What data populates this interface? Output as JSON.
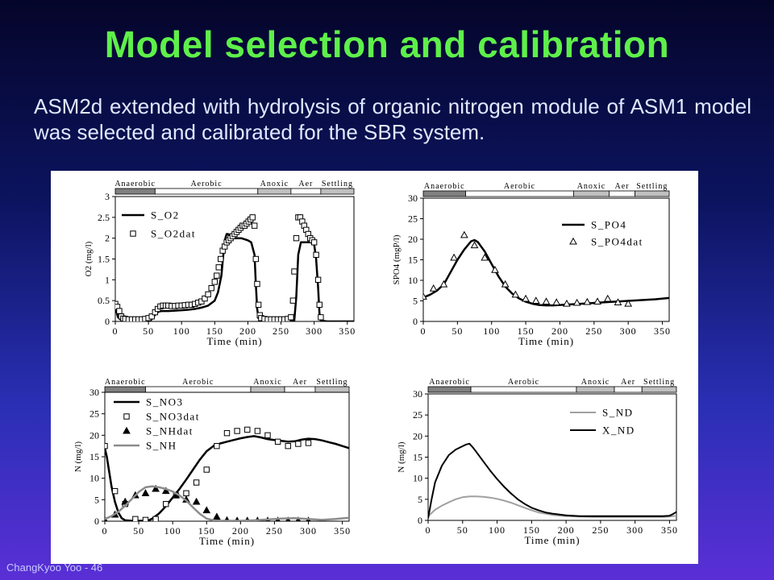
{
  "slide": {
    "title": "Model selection and calibration",
    "body": "ASM2d extended with hydrolysis of organic nitrogen module of ASM1 model was selected and calibrated for the SBR system.",
    "footer": "ChangKyoo Yoo - 46"
  },
  "chart_data": [
    {
      "type": "line",
      "id": "o2",
      "xlabel": "Time (min)",
      "ylabel": "O2 (mg/l)",
      "xlim": [
        0,
        360
      ],
      "ylim": [
        0,
        3
      ],
      "xticks": [
        0,
        50,
        100,
        150,
        200,
        250,
        300,
        350
      ],
      "yticks": [
        0,
        0.5,
        1,
        1.5,
        2,
        2.5,
        3
      ],
      "ytick_labels": [
        "0",
        "0.5",
        "1",
        "1.5",
        "2",
        "2.5",
        "3"
      ],
      "legend_position": "top-left",
      "phases": [
        {
          "label": "Anaerobic",
          "start": 0,
          "end": 60,
          "color": "#808080"
        },
        {
          "label": "Aerobic",
          "start": 60,
          "end": 215,
          "color": "#ffffff"
        },
        {
          "label": "Anoxic",
          "start": 215,
          "end": 265,
          "color": "#c0c0c0"
        },
        {
          "label": "Aer",
          "start": 265,
          "end": 310,
          "color": "#ffffff"
        },
        {
          "label": "Settling",
          "start": 310,
          "end": 360,
          "color": "#c0c0c0"
        }
      ],
      "series": [
        {
          "name": "S_O2",
          "kind": "line",
          "color": "#000000",
          "width": 2.5,
          "x": [
            0,
            4,
            10,
            20,
            30,
            40,
            50,
            55,
            58,
            62,
            66,
            70,
            80,
            90,
            100,
            110,
            120,
            130,
            140,
            150,
            155,
            160,
            163,
            166,
            168,
            170,
            175,
            180,
            190,
            200,
            205,
            210,
            212,
            214,
            216,
            220,
            240,
            260,
            265,
            270,
            273,
            276,
            280,
            290,
            295,
            300,
            303,
            306,
            308,
            310,
            320,
            340,
            360
          ],
          "y": [
            0.35,
            0.1,
            0.02,
            0.01,
            0.01,
            0.01,
            0.02,
            0.05,
            0.12,
            0.2,
            0.24,
            0.25,
            0.25,
            0.26,
            0.27,
            0.28,
            0.3,
            0.33,
            0.38,
            0.5,
            0.7,
            1.1,
            1.6,
            2.0,
            2.1,
            2.1,
            2.05,
            2.0,
            2.0,
            1.95,
            1.9,
            1.6,
            0.9,
            0.3,
            0.08,
            0.02,
            0.01,
            0.01,
            0.01,
            0.02,
            0.6,
            1.6,
            1.9,
            1.9,
            1.9,
            1.85,
            1.5,
            0.8,
            0.2,
            0.02,
            0.0,
            0.0,
            0.0
          ]
        },
        {
          "name": "S_O2dat",
          "kind": "marker",
          "marker": "square",
          "x": [
            0,
            3,
            6,
            9,
            12,
            15,
            20,
            25,
            30,
            35,
            40,
            45,
            50,
            55,
            60,
            64,
            68,
            72,
            76,
            80,
            85,
            90,
            95,
            100,
            105,
            110,
            115,
            120,
            125,
            130,
            135,
            140,
            145,
            150,
            153,
            156,
            159,
            162,
            165,
            168,
            171,
            174,
            177,
            180,
            183,
            186,
            189,
            192,
            195,
            198,
            201,
            204,
            207,
            210,
            212,
            214,
            216,
            218,
            220,
            225,
            230,
            235,
            240,
            245,
            250,
            255,
            260,
            265,
            268,
            270,
            273,
            276,
            279,
            282,
            285,
            288,
            291,
            294,
            297,
            300,
            303,
            306,
            308,
            310
          ],
          "y": [
            0.42,
            0.35,
            0.25,
            0.12,
            0.07,
            0.06,
            0.05,
            0.05,
            0.05,
            0.05,
            0.05,
            0.06,
            0.08,
            0.12,
            0.22,
            0.3,
            0.36,
            0.38,
            0.38,
            0.38,
            0.37,
            0.37,
            0.38,
            0.38,
            0.39,
            0.4,
            0.4,
            0.42,
            0.45,
            0.48,
            0.55,
            0.65,
            0.8,
            0.95,
            1.1,
            1.3,
            1.5,
            1.7,
            1.8,
            1.9,
            1.95,
            2.0,
            2.05,
            2.1,
            2.15,
            2.2,
            2.25,
            2.3,
            2.3,
            2.35,
            2.4,
            2.45,
            2.5,
            2.3,
            1.5,
            0.9,
            0.4,
            0.15,
            0.08,
            0.06,
            0.05,
            0.05,
            0.05,
            0.05,
            0.05,
            0.05,
            0.06,
            0.1,
            0.5,
            1.2,
            2.0,
            2.5,
            2.5,
            2.4,
            2.3,
            2.2,
            2.1,
            2.0,
            1.95,
            1.9,
            1.6,
            1.0,
            0.4,
            0.1
          ]
        }
      ]
    },
    {
      "type": "line",
      "id": "po4",
      "xlabel": "Time (min)",
      "ylabel": "SPO4 (mgP/l)",
      "xlim": [
        0,
        360
      ],
      "ylim": [
        0,
        30
      ],
      "xticks": [
        0,
        50,
        100,
        150,
        200,
        250,
        300,
        350
      ],
      "yticks": [
        0,
        5,
        10,
        15,
        20,
        25,
        30
      ],
      "ytick_labels": [
        "0",
        "5",
        "10",
        "15",
        "20",
        "25",
        "30"
      ],
      "legend_position": "top-right",
      "phases": [
        {
          "label": "Anaerobic",
          "start": 0,
          "end": 62,
          "color": "#808080"
        },
        {
          "label": "Aerobic",
          "start": 62,
          "end": 220,
          "color": "#ffffff"
        },
        {
          "label": "Anoxic",
          "start": 220,
          "end": 272,
          "color": "#c0c0c0"
        },
        {
          "label": "Aer",
          "start": 272,
          "end": 310,
          "color": "#ffffff"
        },
        {
          "label": "Settling",
          "start": 310,
          "end": 360,
          "color": "#c0c0c0"
        }
      ],
      "series": [
        {
          "name": "S_PO4",
          "kind": "line",
          "color": "#000000",
          "width": 2.5,
          "x": [
            0,
            10,
            20,
            30,
            40,
            50,
            60,
            70,
            75,
            80,
            90,
            100,
            110,
            120,
            130,
            140,
            150,
            160,
            170,
            180,
            190,
            200,
            220,
            240,
            260,
            280,
            300,
            320,
            340,
            360
          ],
          "y": [
            5.8,
            6.5,
            7.5,
            9.0,
            12.0,
            15.0,
            17.5,
            19.5,
            19.8,
            19.3,
            17.0,
            14.0,
            11.0,
            8.5,
            6.8,
            5.6,
            4.8,
            4.3,
            4.0,
            3.9,
            3.9,
            4.0,
            4.2,
            4.4,
            4.6,
            4.8,
            5.0,
            5.2,
            5.4,
            5.7
          ]
        },
        {
          "name": "S_PO4dat",
          "kind": "marker",
          "marker": "triangle-open",
          "x": [
            0,
            15,
            30,
            45,
            60,
            75,
            90,
            105,
            120,
            135,
            150,
            165,
            180,
            195,
            210,
            225,
            240,
            255,
            270,
            285,
            300
          ],
          "y": [
            6.0,
            8.0,
            9.0,
            15.5,
            21.0,
            18.5,
            15.5,
            12.5,
            9.0,
            6.5,
            5.5,
            5.0,
            4.8,
            4.6,
            4.3,
            4.5,
            4.7,
            4.8,
            5.5,
            4.6,
            4.3
          ]
        }
      ]
    },
    {
      "type": "line",
      "id": "no3",
      "xlabel": "Time (min)",
      "ylabel": "N (mg/l)",
      "xlim": [
        0,
        360
      ],
      "ylim": [
        0,
        30
      ],
      "xticks": [
        0,
        50,
        100,
        150,
        200,
        250,
        300,
        350
      ],
      "yticks": [
        0,
        5,
        10,
        15,
        20,
        25,
        30
      ],
      "ytick_labels": [
        "0",
        "5",
        "10",
        "15",
        "20",
        "25",
        "30"
      ],
      "legend_position": "top-left",
      "phases": [
        {
          "label": "Anaerobic",
          "start": 0,
          "end": 60,
          "color": "#808080"
        },
        {
          "label": "Aerobic",
          "start": 60,
          "end": 215,
          "color": "#ffffff"
        },
        {
          "label": "Anoxic",
          "start": 215,
          "end": 265,
          "color": "#c0c0c0"
        },
        {
          "label": "Aer",
          "start": 265,
          "end": 310,
          "color": "#ffffff"
        },
        {
          "label": "Settling",
          "start": 310,
          "end": 360,
          "color": "#c0c0c0"
        }
      ],
      "series": [
        {
          "name": "S_NO3",
          "kind": "line",
          "color": "#000000",
          "width": 2.5,
          "x": [
            0,
            3,
            6,
            10,
            15,
            20,
            25,
            30,
            40,
            50,
            60,
            65,
            70,
            80,
            90,
            100,
            110,
            120,
            130,
            140,
            150,
            160,
            170,
            180,
            190,
            200,
            210,
            220,
            230,
            240,
            250,
            260,
            270,
            280,
            290,
            300,
            310,
            320,
            330,
            340,
            350,
            360
          ],
          "y": [
            17.0,
            15.0,
            12.0,
            8.0,
            4.5,
            2.0,
            0.7,
            0.2,
            0.1,
            0.1,
            0.1,
            0.2,
            0.6,
            1.8,
            3.5,
            5.5,
            7.5,
            9.7,
            12.0,
            14.3,
            16.3,
            17.5,
            18.1,
            18.5,
            18.9,
            19.3,
            19.6,
            19.8,
            19.5,
            19.1,
            18.9,
            18.7,
            18.5,
            18.6,
            19.0,
            19.2,
            19.1,
            18.8,
            18.4,
            18.0,
            17.5,
            17.0
          ]
        },
        {
          "name": "S_NO3dat",
          "kind": "marker",
          "marker": "square",
          "x": [
            0,
            15,
            30,
            45,
            60,
            75,
            90,
            105,
            120,
            135,
            150,
            165,
            180,
            195,
            210,
            225,
            240,
            255,
            270,
            285,
            300
          ],
          "y": [
            17.5,
            7.0,
            4.0,
            0.5,
            0.3,
            0.5,
            4.0,
            6.0,
            6.5,
            9.0,
            12.0,
            17.5,
            20.5,
            21.0,
            21.3,
            21.0,
            20.0,
            18.5,
            17.5,
            18.0,
            18.2
          ]
        },
        {
          "name": "S_NHdat",
          "kind": "marker",
          "marker": "triangle-filled",
          "x": [
            0,
            15,
            30,
            45,
            60,
            75,
            90,
            105,
            120,
            135,
            150,
            165,
            180,
            195,
            210,
            225,
            240,
            255,
            270,
            285,
            300
          ],
          "y": [
            0.2,
            1.5,
            4.5,
            6.0,
            6.5,
            7.5,
            7.0,
            6.0,
            5.0,
            4.5,
            2.5,
            1.0,
            0.2,
            0.1,
            0.1,
            0.1,
            0.1,
            0.1,
            0.1,
            0.1,
            0.1
          ]
        },
        {
          "name": "S_NH",
          "kind": "line",
          "color": "#8c8c8c",
          "width": 2.5,
          "x": [
            0,
            10,
            20,
            30,
            40,
            50,
            60,
            70,
            80,
            90,
            100,
            110,
            120,
            130,
            140,
            150,
            160,
            170,
            180,
            190,
            200,
            220,
            240,
            260,
            280,
            300,
            320,
            340,
            360
          ],
          "y": [
            0.5,
            1.2,
            2.2,
            3.6,
            5.2,
            6.8,
            7.9,
            8.1,
            7.9,
            7.5,
            6.9,
            6.0,
            4.8,
            3.2,
            1.7,
            0.6,
            0.2,
            0.1,
            0.1,
            0.1,
            0.1,
            0.2,
            0.4,
            0.6,
            0.7,
            0.5,
            0.3,
            0.5,
            0.8
          ]
        }
      ]
    },
    {
      "type": "line",
      "id": "nd",
      "xlabel": "Time (min)",
      "ylabel": "N (mg/l)",
      "xlim": [
        0,
        360
      ],
      "ylim": [
        0,
        30
      ],
      "xticks": [
        0,
        50,
        100,
        150,
        200,
        250,
        300,
        350
      ],
      "yticks": [
        0,
        5,
        10,
        15,
        20,
        25,
        30
      ],
      "ytick_labels": [
        "0",
        "5",
        "10",
        "15",
        "20",
        "25",
        "30"
      ],
      "legend_position": "top-right",
      "phases": [
        {
          "label": "Anaerobic",
          "start": 0,
          "end": 62,
          "color": "#808080"
        },
        {
          "label": "Aerobic",
          "start": 62,
          "end": 215,
          "color": "#ffffff"
        },
        {
          "label": "Anoxic",
          "start": 215,
          "end": 270,
          "color": "#c0c0c0"
        },
        {
          "label": "Aer",
          "start": 270,
          "end": 310,
          "color": "#ffffff"
        },
        {
          "label": "Settling",
          "start": 310,
          "end": 360,
          "color": "#c0c0c0"
        }
      ],
      "series": [
        {
          "name": "S_ND",
          "kind": "line",
          "color": "#a0a0a0",
          "width": 2,
          "x": [
            0,
            10,
            20,
            30,
            40,
            50,
            60,
            70,
            80,
            90,
            100,
            110,
            120,
            130,
            140,
            150,
            160,
            180,
            200,
            220,
            240,
            260,
            280,
            300,
            320,
            340,
            350,
            360
          ],
          "y": [
            1.0,
            2.5,
            3.5,
            4.3,
            5.0,
            5.5,
            5.7,
            5.7,
            5.6,
            5.4,
            5.1,
            4.7,
            4.2,
            3.6,
            3.0,
            2.4,
            1.9,
            1.3,
            1.0,
            0.9,
            0.8,
            0.8,
            0.8,
            0.8,
            0.8,
            0.8,
            0.9,
            1.1
          ]
        },
        {
          "name": "X_ND",
          "kind": "line",
          "color": "#000000",
          "width": 2,
          "x": [
            0,
            5,
            10,
            20,
            30,
            40,
            50,
            55,
            60,
            65,
            70,
            80,
            90,
            100,
            110,
            120,
            130,
            140,
            150,
            160,
            170,
            180,
            200,
            220,
            240,
            260,
            280,
            300,
            320,
            340,
            350,
            355,
            360
          ],
          "y": [
            0.5,
            5.0,
            9.0,
            13.0,
            15.5,
            16.8,
            17.6,
            18.0,
            18.2,
            17.3,
            16.2,
            14.0,
            11.8,
            9.8,
            8.0,
            6.4,
            5.0,
            3.9,
            3.0,
            2.4,
            1.9,
            1.6,
            1.2,
            1.0,
            1.0,
            1.0,
            1.0,
            1.0,
            1.0,
            1.0,
            1.1,
            1.5,
            2.0
          ]
        }
      ]
    }
  ]
}
